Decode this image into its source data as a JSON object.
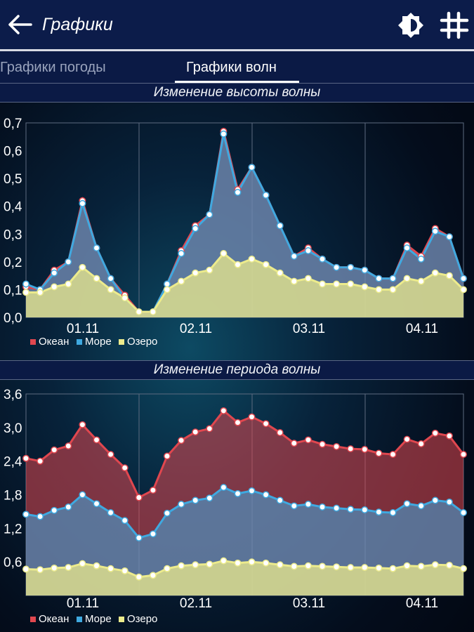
{
  "app": {
    "title": "Графики",
    "back_icon": "arrow-left-icon",
    "theme_icon": "brightness-icon",
    "grid_icon": "grid-icon"
  },
  "tabs": [
    {
      "label": "Графики погоды",
      "active": false
    },
    {
      "label": "Графики волн",
      "active": true
    }
  ],
  "colors": {
    "ocean": "#e0474f",
    "sea": "#3fa9e0",
    "lake": "#eceb8c"
  },
  "chart_data": [
    {
      "type": "area",
      "title": "Изменение высоты волны",
      "x_ticks": [
        "01.11",
        "02.11",
        "03.11",
        "04.11"
      ],
      "y_ticks": [
        "0,0",
        "0,1",
        "0,2",
        "0,3",
        "0,4",
        "0,5",
        "0,6",
        "0,7"
      ],
      "ylim": [
        0,
        0.7
      ],
      "grid": true,
      "legend": "bottom-left",
      "series": [
        {
          "name": "Океан",
          "values": [
            0.11,
            0.1,
            0.17,
            0.2,
            0.42,
            0.25,
            0.14,
            0.08,
            0.02,
            0.02,
            0.12,
            0.24,
            0.33,
            0.37,
            0.67,
            0.46,
            0.54,
            0.44,
            0.33,
            0.22,
            0.25,
            0.21,
            0.18,
            0.18,
            0.17,
            0.14,
            0.14,
            0.26,
            0.22,
            0.32,
            0.29,
            0.14
          ]
        },
        {
          "name": "Море",
          "values": [
            0.12,
            0.1,
            0.16,
            0.2,
            0.41,
            0.25,
            0.14,
            0.07,
            0.02,
            0.02,
            0.12,
            0.23,
            0.32,
            0.37,
            0.66,
            0.45,
            0.54,
            0.44,
            0.33,
            0.22,
            0.24,
            0.21,
            0.18,
            0.18,
            0.17,
            0.14,
            0.14,
            0.25,
            0.21,
            0.31,
            0.29,
            0.14
          ]
        },
        {
          "name": "Озеро",
          "values": [
            0.09,
            0.09,
            0.11,
            0.12,
            0.18,
            0.14,
            0.1,
            0.07,
            0.02,
            0.02,
            0.1,
            0.13,
            0.16,
            0.17,
            0.23,
            0.19,
            0.21,
            0.19,
            0.16,
            0.13,
            0.14,
            0.12,
            0.12,
            0.12,
            0.11,
            0.1,
            0.1,
            0.14,
            0.13,
            0.16,
            0.15,
            0.1
          ]
        }
      ]
    },
    {
      "type": "area",
      "title": "Изменение периода волны",
      "x_ticks": [
        "01.11",
        "02.11",
        "03.11",
        "04.11"
      ],
      "y_ticks": [
        "0,6",
        "1,2",
        "1,8",
        "2,4",
        "3,0",
        "3,6"
      ],
      "ylim": [
        0,
        3.6
      ],
      "grid": true,
      "legend": "bottom-left",
      "series": [
        {
          "name": "Океан",
          "values": [
            2.45,
            2.4,
            2.6,
            2.67,
            3.05,
            2.78,
            2.52,
            2.28,
            1.75,
            1.88,
            2.49,
            2.77,
            2.92,
            2.98,
            3.3,
            3.09,
            3.19,
            3.07,
            2.91,
            2.72,
            2.78,
            2.7,
            2.66,
            2.62,
            2.61,
            2.54,
            2.52,
            2.79,
            2.71,
            2.9,
            2.85,
            2.52
          ]
        },
        {
          "name": "Море",
          "values": [
            1.45,
            1.41,
            1.52,
            1.58,
            1.8,
            1.64,
            1.48,
            1.34,
            1.03,
            1.1,
            1.47,
            1.63,
            1.7,
            1.74,
            1.93,
            1.82,
            1.87,
            1.8,
            1.7,
            1.6,
            1.63,
            1.58,
            1.56,
            1.54,
            1.53,
            1.49,
            1.48,
            1.64,
            1.6,
            1.7,
            1.67,
            1.48
          ]
        },
        {
          "name": "Озеро",
          "values": [
            0.47,
            0.46,
            0.49,
            0.5,
            0.57,
            0.53,
            0.48,
            0.44,
            0.33,
            0.36,
            0.48,
            0.53,
            0.55,
            0.56,
            0.62,
            0.58,
            0.6,
            0.58,
            0.55,
            0.52,
            0.53,
            0.52,
            0.51,
            0.5,
            0.5,
            0.49,
            0.48,
            0.53,
            0.52,
            0.55,
            0.54,
            0.48
          ]
        }
      ]
    }
  ]
}
